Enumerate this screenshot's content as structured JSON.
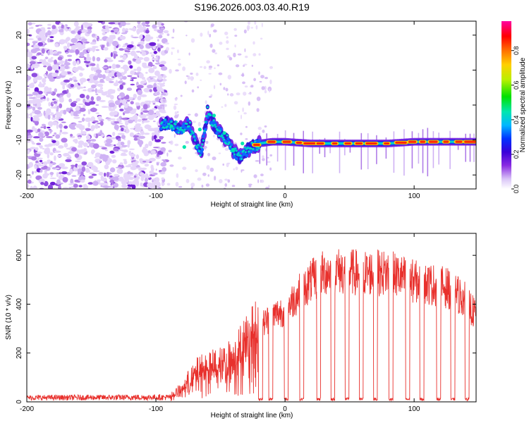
{
  "title": "S196.2026.003.03.40.R19",
  "chart_data": [
    {
      "type": "heatmap",
      "xlabel": "Height of straight line (km)",
      "ylabel": "Frequency (Hz)",
      "xlim": [
        -200,
        148
      ],
      "ylim": [
        -24,
        24
      ],
      "xticks": [
        -200,
        -100,
        0,
        100
      ],
      "yticks": [
        -20,
        -10,
        0,
        10,
        20
      ],
      "signal_track": {
        "x": [
          -95,
          -90,
          -85,
          -80,
          -75,
          -70,
          -65,
          -60,
          -55,
          -50,
          -45,
          -40,
          -35,
          -30,
          -25,
          -20,
          -10,
          0,
          20,
          40,
          60,
          80,
          100,
          120,
          148
        ],
        "freq": [
          -6,
          -5,
          -6,
          -7,
          -5,
          -10,
          -14,
          -2,
          -6,
          -8,
          -10,
          -13,
          -15,
          -13,
          -12,
          -11,
          -10.5,
          -10.5,
          -11,
          -11,
          -11,
          -11,
          -10.5,
          -10.5,
          -10.5
        ]
      },
      "noise_region": [
        -200,
        -100
      ],
      "colorbar": {
        "label": "Normalized spectral amplitude",
        "ticks": [
          0.0,
          0.2,
          0.4,
          0.6,
          0.8
        ],
        "range": [
          0,
          0.97
        ]
      }
    },
    {
      "type": "line",
      "xlabel": "Height of straight line (km)",
      "ylabel": "SNR (10 * v/v)",
      "xlim": [
        -200,
        148
      ],
      "ylim": [
        0,
        690
      ],
      "xticks": [
        -200,
        -100,
        0,
        100
      ],
      "yticks": [
        0,
        200,
        400,
        600
      ],
      "series": [
        {
          "name": "SNR",
          "color": "#e8302c",
          "envelope_x": [
            -200,
            -90,
            -80,
            -70,
            -60,
            -50,
            -40,
            -30,
            -20,
            -10,
            0,
            10,
            20,
            30,
            40,
            60,
            80,
            100,
            120,
            130,
            140,
            148
          ],
          "envelope_y": [
            20,
            22,
            60,
            130,
            160,
            170,
            200,
            280,
            350,
            400,
            430,
            500,
            560,
            600,
            610,
            600,
            600,
            560,
            540,
            520,
            470,
            400
          ],
          "dropout_x": [
            -19,
            -11,
            1,
            13,
            26,
            37,
            48,
            59,
            70,
            82,
            95,
            106,
            119,
            130,
            141
          ]
        }
      ]
    }
  ]
}
